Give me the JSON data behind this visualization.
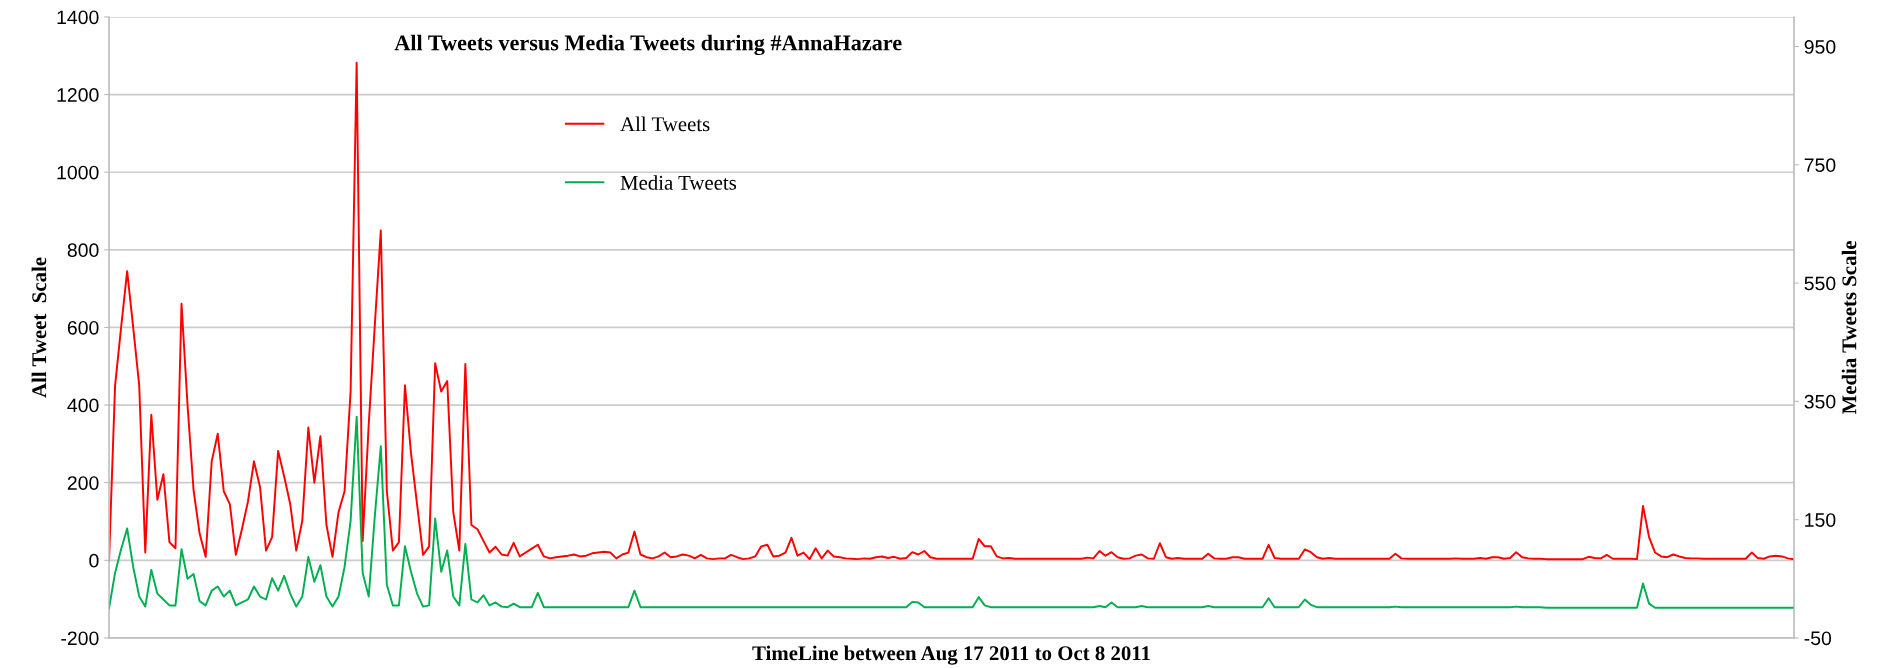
{
  "chart_data": {
    "type": "line",
    "title": "All Tweets versus Media Tweets during #AnnaHazare",
    "xlabel": "TimeLine between Aug 17 2011 to Oct 8 2011",
    "ylabel": "All Tweet  Scale",
    "y2label": "Media Tweets Scale",
    "categories": [
      null,
      null,
      null,
      null,
      null,
      null,
      null,
      null,
      null,
      null,
      null,
      null,
      null,
      null,
      null,
      null,
      null,
      null,
      null,
      null,
      null,
      null,
      null,
      null,
      null,
      null,
      null,
      null,
      null,
      null,
      null,
      null,
      null,
      null,
      null,
      null,
      null,
      null,
      null,
      null,
      null,
      null,
      null,
      null,
      null,
      null,
      null,
      null,
      null,
      null,
      null,
      null,
      null,
      null,
      null,
      null,
      null,
      null,
      null,
      null,
      null,
      null,
      null,
      null,
      null,
      null,
      null,
      null,
      null,
      null,
      null,
      null,
      null,
      null,
      null,
      null,
      null,
      null,
      null,
      null,
      null,
      null,
      null,
      null,
      null,
      null,
      null,
      null,
      null,
      null,
      null,
      null,
      null,
      null,
      null,
      null,
      null,
      null,
      null,
      null,
      null,
      null,
      null,
      null,
      null,
      null,
      null,
      null,
      null,
      null,
      null,
      null,
      null,
      null,
      null,
      null,
      null,
      null,
      null,
      null,
      null,
      null,
      null,
      null,
      null,
      null,
      null,
      null,
      null,
      null,
      null,
      null,
      null,
      null,
      null,
      null,
      null,
      null,
      null,
      null,
      null,
      null,
      null,
      null,
      null,
      null,
      null,
      null,
      null,
      null,
      null,
      null,
      null,
      null,
      null,
      null,
      null,
      null,
      null,
      null,
      null,
      null,
      null,
      null,
      null,
      null,
      null,
      null,
      null,
      null,
      null,
      null,
      null,
      null,
      null,
      null,
      null,
      null,
      null,
      null,
      null,
      null,
      null,
      null,
      null,
      null,
      null,
      null,
      null,
      null,
      null,
      null,
      null,
      null,
      null,
      null,
      null,
      null,
      null,
      null,
      null,
      null,
      null,
      null,
      null,
      null,
      null,
      null,
      null,
      null,
      null,
      null,
      null,
      null,
      null,
      null,
      null,
      null,
      null,
      null,
      null,
      null,
      null,
      null,
      null,
      null,
      null,
      null,
      null,
      null,
      null,
      null,
      null,
      null,
      null,
      null,
      null,
      null,
      null,
      null,
      null,
      null,
      null,
      null,
      null,
      null,
      null,
      null,
      null,
      null,
      null,
      null,
      null,
      null,
      null,
      null,
      null,
      null,
      null,
      null,
      null,
      null,
      null,
      null,
      null,
      null,
      null,
      null,
      null,
      null,
      null,
      null,
      null,
      null,
      null,
      null,
      null,
      null,
      null,
      null
    ],
    "series": [
      {
        "name": "All Tweets",
        "color": "#ff0000",
        "values": [
          0,
          450,
          600,
          745,
          600,
          450,
          20,
          375,
          156,
          222,
          47,
          31,
          661,
          400,
          180,
          69,
          9,
          255,
          326,
          178,
          145,
          14,
          80,
          151,
          255,
          189,
          25,
          60,
          282,
          216,
          145,
          25,
          102,
          342,
          200,
          320,
          91,
          9,
          124,
          178,
          435,
          1282,
          50,
          350,
          604,
          850,
          178,
          25,
          47,
          451,
          276,
          145,
          14,
          36,
          508,
          435,
          462,
          124,
          25,
          506,
          91,
          80,
          50,
          20,
          35,
          15,
          12,
          45,
          10,
          20,
          30,
          40,
          10,
          5,
          8,
          10,
          12,
          15,
          10,
          12,
          18,
          20,
          22,
          20,
          5,
          15,
          20,
          74,
          15,
          8,
          5,
          10,
          20,
          8,
          10,
          15,
          12,
          5,
          14,
          5,
          3,
          5,
          5,
          14,
          8,
          3,
          5,
          10,
          36,
          40,
          10,
          12,
          20,
          58,
          12,
          20,
          3,
          31,
          5,
          25,
          10,
          8,
          5,
          4,
          3,
          5,
          4,
          8,
          10,
          6,
          9,
          4,
          6,
          21,
          15,
          24,
          8,
          4,
          4,
          4,
          4,
          4,
          4,
          4,
          55,
          36,
          36,
          10,
          5,
          6,
          4,
          4,
          4,
          4,
          4,
          4,
          4,
          4,
          4,
          4,
          4,
          4,
          7,
          5,
          24,
          12,
          21,
          8,
          4,
          5,
          12,
          15,
          5,
          4,
          44,
          8,
          4,
          6,
          4,
          4,
          4,
          4,
          17,
          5,
          4,
          4,
          8,
          8,
          4,
          4,
          4,
          4,
          40,
          6,
          4,
          4,
          4,
          4,
          28,
          21,
          8,
          4,
          6,
          4,
          4,
          4,
          4,
          4,
          4,
          4,
          4,
          4,
          4,
          17,
          5,
          4,
          4,
          4,
          4,
          4,
          4,
          4,
          4,
          5,
          4,
          4,
          4,
          6,
          4,
          8,
          8,
          4,
          6,
          21,
          8,
          5,
          4,
          4,
          3,
          3,
          3,
          3,
          3,
          3,
          3,
          9,
          6,
          5,
          14,
          4,
          4,
          4,
          4,
          3,
          140,
          60,
          20,
          10,
          8,
          15,
          10,
          6,
          5,
          5,
          4,
          4,
          4,
          4,
          4,
          4,
          4,
          4,
          20,
          6,
          4,
          10,
          12,
          10,
          5,
          3
        ]
      },
      {
        "name": "Media Tweets",
        "color": "#00b050",
        "axis": "y2",
        "values": [
          0,
          60,
          100,
          135,
          70,
          20,
          3,
          65,
          25,
          15,
          5,
          5,
          100,
          50,
          58,
          12,
          5,
          30,
          37,
          20,
          30,
          5,
          10,
          15,
          37,
          20,
          15,
          51,
          30,
          55,
          25,
          3,
          20,
          87,
          45,
          73,
          20,
          3,
          20,
          70,
          148,
          324,
          60,
          20,
          155,
          274,
          40,
          5,
          5,
          105,
          62,
          25,
          3,
          5,
          152,
          62,
          98,
          20,
          5,
          109,
          15,
          10,
          22,
          5,
          10,
          3,
          2,
          8,
          2,
          2,
          2,
          26,
          2,
          2,
          2,
          2,
          2,
          2,
          2,
          2,
          2,
          2,
          2,
          2,
          2,
          2,
          2,
          30,
          2,
          2,
          2,
          2,
          2,
          2,
          2,
          2,
          2,
          2,
          2,
          2,
          2,
          2,
          2,
          2,
          2,
          2,
          2,
          2,
          2,
          2,
          2,
          2,
          2,
          2,
          2,
          2,
          2,
          2,
          2,
          2,
          2,
          2,
          2,
          2,
          2,
          2,
          2,
          2,
          2,
          2,
          2,
          2,
          2,
          11,
          10,
          2,
          2,
          2,
          2,
          2,
          2,
          2,
          2,
          2,
          19,
          5,
          2,
          2,
          2,
          2,
          2,
          2,
          2,
          2,
          2,
          2,
          2,
          2,
          2,
          2,
          2,
          2,
          2,
          2,
          4,
          2,
          10,
          2,
          2,
          2,
          2,
          4,
          2,
          2,
          2,
          2,
          2,
          2,
          2,
          2,
          2,
          2,
          4,
          2,
          2,
          2,
          2,
          2,
          2,
          2,
          2,
          2,
          17,
          2,
          2,
          2,
          2,
          2,
          15,
          6,
          2,
          2,
          2,
          2,
          2,
          2,
          2,
          2,
          2,
          2,
          2,
          2,
          2,
          3,
          2,
          2,
          2,
          2,
          2,
          2,
          2,
          2,
          2,
          2,
          2,
          2,
          2,
          2,
          2,
          2,
          2,
          2,
          2,
          3,
          2,
          2,
          2,
          2,
          1,
          1,
          1,
          1,
          1,
          1,
          1,
          1,
          1,
          1,
          1,
          1,
          1,
          1,
          1,
          1,
          42,
          8,
          1,
          1,
          1,
          1,
          1,
          1,
          1,
          1,
          1,
          1,
          1,
          1,
          1,
          1,
          1,
          1,
          1,
          1,
          1,
          1,
          1,
          1,
          1,
          1
        ]
      }
    ],
    "ylim": [
      -200,
      1400
    ],
    "yticks": [
      -200,
      0,
      200,
      400,
      600,
      800,
      1000,
      1200,
      1400
    ],
    "y2lim": [
      -50,
      1000
    ],
    "y2ticks": [
      -50,
      150,
      350,
      550,
      750,
      950
    ],
    "grid": "y",
    "legend": "top left"
  }
}
